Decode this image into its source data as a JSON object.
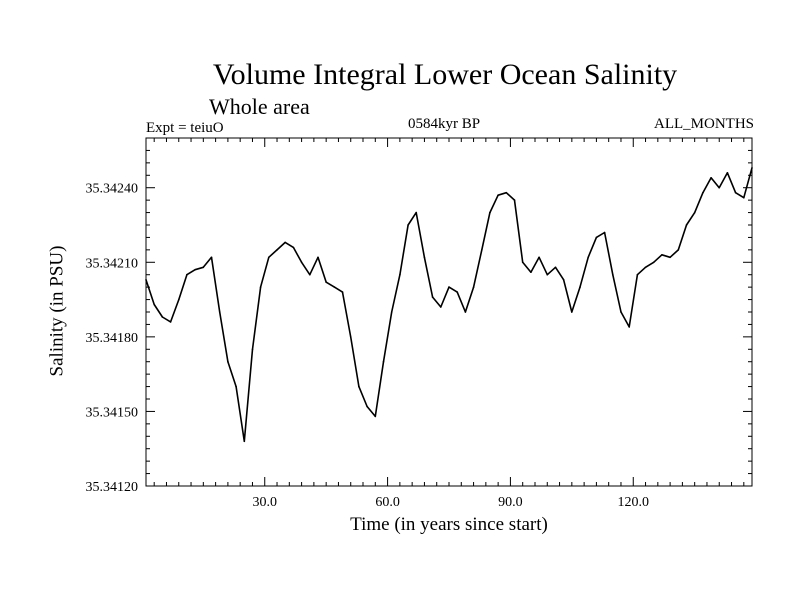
{
  "chart_data": {
    "type": "line",
    "title": "Volume Integral Lower Ocean Salinity",
    "subtitle": "Whole area",
    "annotations": {
      "experiment": "Expt = teiuO",
      "period": "0584kyr BP",
      "months": "ALL_MONTHS"
    },
    "xlabel": "Time (in years since start)",
    "ylabel": "Salinity (in PSU)",
    "xlim": [
      1,
      149
    ],
    "ylim": [
      35.3412,
      35.3426
    ],
    "xticks": [
      30,
      60,
      90,
      120
    ],
    "xtick_labels": [
      "30.0",
      "60.0",
      "90.0",
      "120.0"
    ],
    "yticks": [
      35.3412,
      35.3415,
      35.3418,
      35.3421,
      35.3424
    ],
    "ytick_labels": [
      "35.34120",
      "35.34150",
      "35.34180",
      "35.34210",
      "35.34240"
    ],
    "grid": false,
    "series": [
      {
        "name": "Volume integral lower ocean salinity",
        "color": "#000000",
        "x": [
          1,
          3,
          5,
          7,
          9,
          11,
          13,
          15,
          17,
          19,
          21,
          23,
          25,
          27,
          29,
          31,
          33,
          35,
          37,
          39,
          41,
          43,
          45,
          47,
          49,
          51,
          53,
          55,
          57,
          59,
          61,
          63,
          65,
          67,
          69,
          71,
          73,
          75,
          77,
          79,
          81,
          83,
          85,
          87,
          89,
          91,
          93,
          95,
          97,
          99,
          101,
          103,
          105,
          107,
          109,
          111,
          113,
          115,
          117,
          119,
          121,
          123,
          125,
          127,
          129,
          131,
          133,
          135,
          137,
          139,
          141,
          143,
          145,
          147,
          149
        ],
        "values": [
          35.34203,
          35.34193,
          35.34188,
          35.34186,
          35.34195,
          35.34205,
          35.34207,
          35.34208,
          35.34212,
          35.3419,
          35.3417,
          35.3416,
          35.34138,
          35.34175,
          35.342,
          35.34212,
          35.34215,
          35.34218,
          35.34216,
          35.3421,
          35.34205,
          35.34212,
          35.34202,
          35.342,
          35.34198,
          35.3418,
          35.3416,
          35.34152,
          35.34148,
          35.3417,
          35.3419,
          35.34205,
          35.34225,
          35.3423,
          35.34212,
          35.34196,
          35.34192,
          35.342,
          35.34198,
          35.3419,
          35.342,
          35.34215,
          35.3423,
          35.34237,
          35.34238,
          35.34235,
          35.3421,
          35.34206,
          35.34212,
          35.34205,
          35.34208,
          35.34203,
          35.3419,
          35.342,
          35.34212,
          35.3422,
          35.34222,
          35.34205,
          35.3419,
          35.34184,
          35.34205,
          35.34208,
          35.3421,
          35.34213,
          35.34212,
          35.34215,
          35.34225,
          35.3423,
          35.34238,
          35.34244,
          35.3424,
          35.34246,
          35.34238,
          35.34236,
          35.34248
        ]
      }
    ]
  }
}
